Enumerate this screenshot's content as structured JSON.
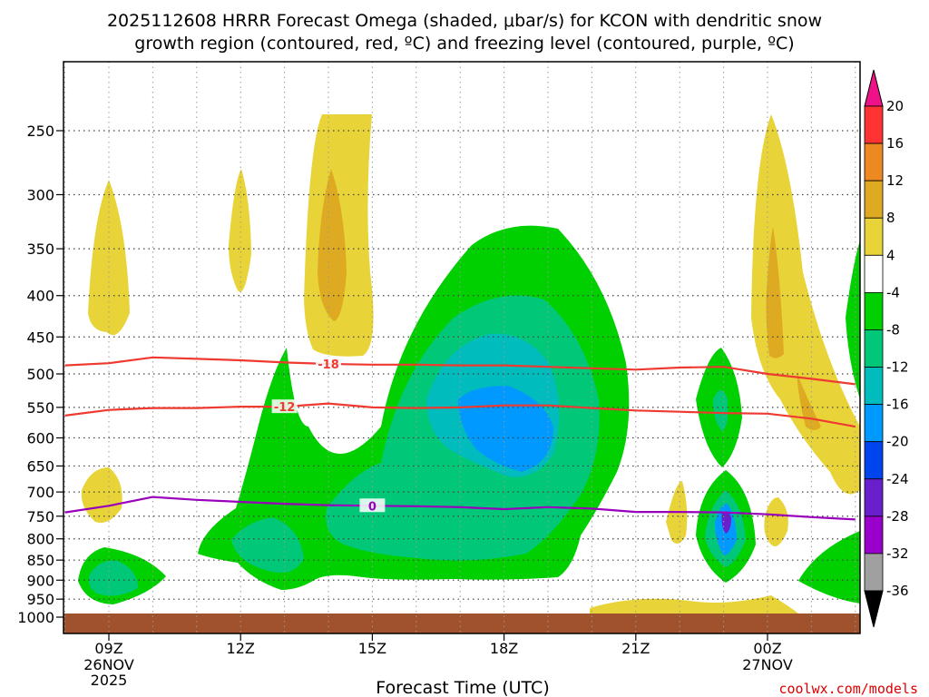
{
  "chart_data": {
    "type": "heatmap",
    "title_line1": "2025112608 HRRR Forecast Omega (shaded, μbar/s) for KCON with dendritic snow",
    "title_line2": "growth region (contoured, red, ºC) and freezing level (contoured, purple, ºC)",
    "xlabel": "Forecast Time (UTC)",
    "credit": "coolwx.com/models",
    "x_ticks": [
      {
        "label": "09Z",
        "sub1": "26NOV",
        "sub2": "2025",
        "hour": 9
      },
      {
        "label": "12Z",
        "sub1": "",
        "sub2": "",
        "hour": 12
      },
      {
        "label": "15Z",
        "sub1": "",
        "sub2": "",
        "hour": 15
      },
      {
        "label": "18Z",
        "sub1": "",
        "sub2": "",
        "hour": 18
      },
      {
        "label": "21Z",
        "sub1": "",
        "sub2": "",
        "hour": 21
      },
      {
        "label": "00Z",
        "sub1": "27NOV",
        "sub2": "",
        "hour": 24
      }
    ],
    "x_range_hours": [
      8.0,
      26.0
    ],
    "y_ticks": [
      250,
      300,
      350,
      400,
      450,
      500,
      550,
      600,
      650,
      700,
      750,
      800,
      850,
      900,
      950,
      1000
    ],
    "y_range_hpa": [
      200,
      1000
    ],
    "colorbar": {
      "labels": [
        "20",
        "16",
        "12",
        "8",
        "4",
        "-4",
        "-8",
        "-12",
        "-16",
        "-20",
        "-24",
        "-28",
        "-32",
        "-36"
      ],
      "colors": [
        "#ff3333",
        "#ee8822",
        "#ddaa22",
        "#e8d438",
        "#ffffff",
        "#00d000",
        "#00c878",
        "#00bcbc",
        "#0099ff",
        "#0044ee",
        "#6a1fcc",
        "#9a00cc",
        "#a0a0a0"
      ],
      "top_arrow_color": "#ee1188",
      "bottom_arrow_color": "#000000"
    },
    "contours": [
      {
        "label": "-18",
        "color": "#ee3a30",
        "hour": 14.0,
        "points": [
          [
            8.0,
            488
          ],
          [
            9.0,
            485
          ],
          [
            10.0,
            477
          ],
          [
            11.0,
            479
          ],
          [
            12.0,
            481
          ],
          [
            13.0,
            484
          ],
          [
            14.0,
            486
          ],
          [
            15.0,
            487
          ],
          [
            16.0,
            487
          ],
          [
            17.0,
            488
          ],
          [
            18.0,
            488
          ],
          [
            19.0,
            490
          ],
          [
            20.0,
            492
          ],
          [
            21.0,
            494
          ],
          [
            22.0,
            491
          ],
          [
            23.0,
            490
          ],
          [
            24.0,
            500
          ],
          [
            25.0,
            507
          ],
          [
            26.0,
            515
          ]
        ]
      },
      {
        "label": "-12",
        "color": "#ee3a30",
        "hour": 13.0,
        "points": [
          [
            8.0,
            563
          ],
          [
            9.0,
            554
          ],
          [
            10.0,
            551
          ],
          [
            11.0,
            551
          ],
          [
            12.0,
            549
          ],
          [
            13.0,
            549
          ],
          [
            14.0,
            544
          ],
          [
            15.0,
            550
          ],
          [
            16.0,
            551
          ],
          [
            17.0,
            550
          ],
          [
            18.0,
            547
          ],
          [
            19.0,
            547
          ],
          [
            20.0,
            551
          ],
          [
            21.0,
            555
          ],
          [
            22.0,
            557
          ],
          [
            23.0,
            559
          ],
          [
            24.0,
            560
          ],
          [
            25.0,
            568
          ],
          [
            26.0,
            581
          ]
        ]
      },
      {
        "label": "0",
        "color": "#9900bb",
        "hour": 15.0,
        "points": [
          [
            8.0,
            742
          ],
          [
            9.0,
            728
          ],
          [
            10.0,
            710
          ],
          [
            11.0,
            716
          ],
          [
            12.0,
            720
          ],
          [
            13.0,
            724
          ],
          [
            14.0,
            727
          ],
          [
            15.0,
            728
          ],
          [
            16.0,
            729
          ],
          [
            17.0,
            731
          ],
          [
            18.0,
            735
          ],
          [
            19.0,
            731
          ],
          [
            20.0,
            734
          ],
          [
            21.0,
            741
          ],
          [
            22.0,
            741
          ],
          [
            23.0,
            742
          ],
          [
            24.0,
            746
          ],
          [
            25.0,
            752
          ],
          [
            26.0,
            757
          ]
        ]
      }
    ]
  }
}
